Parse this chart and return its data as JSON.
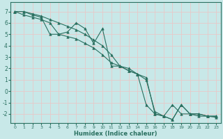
{
  "title": "",
  "xlabel": "Humidex (Indice chaleur)",
  "xlim": [
    -0.5,
    23.5
  ],
  "ylim": [
    -2.8,
    7.8
  ],
  "yticks": [
    -2,
    -1,
    0,
    1,
    2,
    3,
    4,
    5,
    6,
    7
  ],
  "xticks": [
    0,
    1,
    2,
    3,
    4,
    5,
    6,
    7,
    8,
    9,
    10,
    11,
    12,
    13,
    14,
    15,
    16,
    17,
    18,
    19,
    20,
    21,
    22,
    23
  ],
  "bg_color": "#c8e8e8",
  "grid_color": "#e8c8c8",
  "line_color": "#2a7060",
  "series1_x": [
    0,
    1,
    2,
    3,
    4,
    5,
    6,
    7,
    8,
    9,
    10,
    11,
    12,
    13,
    14,
    15,
    16,
    17,
    18,
    19,
    20,
    21,
    22,
    23
  ],
  "series1_y": [
    7.0,
    7.0,
    6.7,
    6.5,
    5.0,
    5.0,
    5.2,
    6.0,
    5.5,
    4.2,
    5.5,
    2.2,
    2.2,
    2.0,
    1.5,
    -1.2,
    -2.0,
    -2.2,
    -1.2,
    -2.0,
    -2.0,
    -2.2,
    -2.2,
    -2.3
  ],
  "series2_x": [
    0,
    1,
    2,
    3,
    4,
    5,
    6,
    7,
    8,
    9,
    10,
    11,
    12,
    13,
    14,
    15,
    16,
    17,
    18,
    19,
    20,
    21,
    22,
    23
  ],
  "series2_y": [
    7.0,
    6.7,
    6.5,
    6.3,
    6.0,
    5.0,
    4.8,
    4.6,
    4.2,
    3.8,
    3.2,
    2.5,
    2.2,
    1.8,
    1.5,
    1.2,
    -2.0,
    -2.2,
    -2.5,
    -1.2,
    -2.0,
    -2.0,
    -2.2,
    -2.2
  ],
  "series3_x": [
    0,
    1,
    2,
    3,
    4,
    5,
    6,
    7,
    8,
    9,
    10,
    11,
    12,
    13,
    14,
    15,
    16,
    17,
    18,
    19,
    20,
    21,
    22,
    23
  ],
  "series3_y": [
    7.0,
    7.0,
    6.8,
    6.6,
    6.3,
    6.0,
    5.7,
    5.4,
    5.0,
    4.5,
    4.0,
    3.2,
    2.2,
    1.8,
    1.5,
    1.0,
    -1.8,
    -2.2,
    -2.5,
    -1.2,
    -2.0,
    -2.0,
    -2.2,
    -2.2
  ]
}
